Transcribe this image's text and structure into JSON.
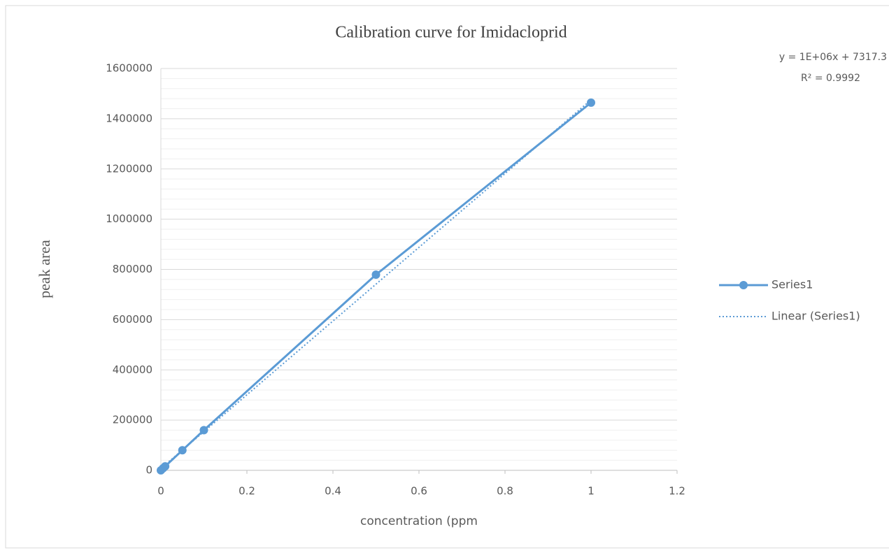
{
  "chart_data": {
    "type": "scatter",
    "title": "Calibration  curve for Imidacloprid",
    "xlabel": "concentration (ppm",
    "ylabel": "peak  area",
    "x": [
      0,
      0.005,
      0.01,
      0.05,
      0.1,
      0.5,
      1
    ],
    "series": [
      {
        "name": "Series1",
        "color": "#5b9bd5",
        "values": [
          0,
          8000,
          16000,
          80000,
          160000,
          779000,
          1464000
        ]
      }
    ],
    "trendline": {
      "name": "Linear (Series1)",
      "color": "#5b9bd5",
      "x": [
        0,
        1
      ],
      "values": [
        7317.3,
        1475000
      ]
    },
    "annotations": [
      "y = 1E+06x + 7317.3",
      "R² = 0.9992"
    ],
    "xlim": [
      0,
      1.2
    ],
    "xticks": [
      0,
      0.2,
      0.4,
      0.6,
      0.8,
      1,
      1.2
    ],
    "ylim": [
      0,
      1600000
    ],
    "yticks": [
      0,
      200000,
      400000,
      600000,
      800000,
      1000000,
      1200000,
      1400000,
      1600000
    ],
    "grid": true,
    "minor_grid": true,
    "legend": "right"
  }
}
